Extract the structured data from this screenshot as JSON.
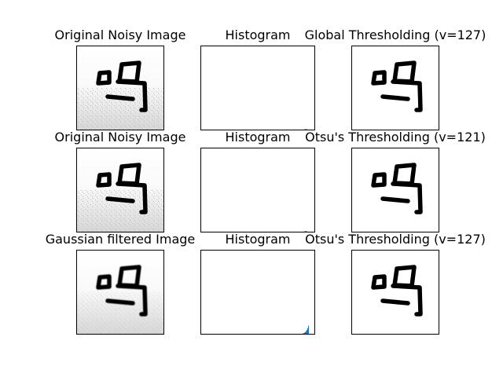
{
  "chart_data": [
    {
      "type": "image",
      "title": "Original Noisy Image",
      "image": "character-glyph-noisy"
    },
    {
      "type": "bar",
      "title": "Histogram",
      "values": [
        0,
        1,
        2,
        3,
        4,
        5,
        6,
        7,
        8,
        9,
        10,
        12,
        14,
        16,
        18,
        20,
        22,
        24,
        26,
        28,
        30,
        32,
        34,
        36,
        38,
        40,
        42,
        44,
        46,
        48,
        50,
        53,
        56,
        60,
        64,
        68,
        72,
        77,
        82,
        88,
        95,
        104,
        116,
        140,
        180,
        240,
        320,
        420,
        520,
        600,
        640,
        560,
        380,
        160
      ],
      "ylim": [
        0,
        40000
      ]
    },
    {
      "type": "image",
      "title": "Global Thresholding (v=127)",
      "image": "character-glyph-binary"
    },
    {
      "type": "image",
      "title": "Original Noisy Image",
      "image": "character-glyph-noisy"
    },
    {
      "type": "bar",
      "title": "Histogram",
      "values": [
        0,
        1,
        2,
        3,
        4,
        5,
        6,
        7,
        8,
        9,
        10,
        12,
        14,
        16,
        18,
        20,
        22,
        24,
        26,
        28,
        30,
        32,
        34,
        36,
        38,
        40,
        42,
        44,
        46,
        48,
        50,
        53,
        56,
        60,
        64,
        68,
        72,
        77,
        82,
        88,
        95,
        104,
        116,
        140,
        180,
        240,
        320,
        420,
        520,
        600,
        640,
        560,
        380,
        160
      ],
      "ylim": [
        0,
        40000
      ]
    },
    {
      "type": "image",
      "title": "Otsu's Thresholding (v=121)",
      "image": "character-glyph-binary"
    },
    {
      "type": "image",
      "title": "Gaussian filtered Image",
      "image": "character-glyph-blurred"
    },
    {
      "type": "bar",
      "title": "Histogram",
      "values": [
        0,
        1,
        2,
        3,
        4,
        5,
        6,
        7,
        8,
        9,
        10,
        12,
        14,
        16,
        18,
        20,
        22,
        24,
        26,
        28,
        30,
        32,
        34,
        36,
        38,
        40,
        42,
        44,
        46,
        48,
        50,
        53,
        56,
        60,
        64,
        68,
        72,
        77,
        82,
        88,
        95,
        104,
        116,
        140,
        180,
        240,
        320,
        420,
        520,
        700,
        900,
        1200,
        1600,
        2200,
        3000,
        4200
      ],
      "ylim": [
        0,
        40000
      ]
    },
    {
      "type": "image",
      "title": "Otsu's Thresholding (v=127)",
      "image": "character-glyph-binary"
    }
  ],
  "colors": {
    "histogram": "#1f77b4",
    "axes": "#000000",
    "glyph": "#000000"
  }
}
